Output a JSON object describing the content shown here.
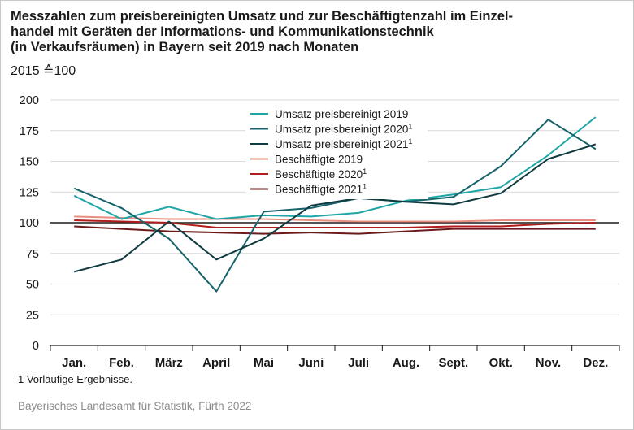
{
  "title_lines": [
    "Messzahlen zum preisbereinigten Umsatz und zur Beschäftigtenzahl im Einzel-",
    "handel mit Geräten der Informations- und Kommunikationstechnik",
    "(in Verkaufsräumen) in Bayern seit 2019 nach Monaten"
  ],
  "subtitle": "2015 ≙100",
  "footnote": "1  Vorläufige Ergebnisse.",
  "source": "Bayerisches Landesamt für Statistik, Fürth 2022",
  "chart_data": {
    "type": "line",
    "title": "Messzahlen zum preisbereinigten Umsatz und zur Beschäftigtenzahl im Einzelhandel mit Geräten der Informations- und Kommunikationstechnik (in Verkaufsräumen) in Bayern seit 2019 nach Monaten",
    "xlabel": "",
    "ylabel": "",
    "categories": [
      "Jan.",
      "Feb.",
      "März",
      "April",
      "Mai",
      "Juni",
      "Juli",
      "Aug.",
      "Sept.",
      "Okt.",
      "Nov.",
      "Dez."
    ],
    "ylim": [
      0,
      200
    ],
    "yticks": [
      0,
      25,
      50,
      75,
      100,
      125,
      150,
      175,
      200
    ],
    "grid": "horizontal",
    "legend_position": "top-center",
    "series": [
      {
        "name": "Umsatz preisbereinigt 2019",
        "sup": "",
        "color": "#1fa5a5",
        "width": 2,
        "values": [
          122,
          103,
          113,
          103,
          106,
          105,
          108,
          118,
          123,
          129,
          155,
          186
        ]
      },
      {
        "name": "Umsatz preisbereinigt 2020",
        "sup": "1",
        "color": "#16636b",
        "width": 2,
        "values": [
          128,
          112,
          87,
          44,
          109,
          112,
          120,
          117,
          121,
          146,
          184,
          160
        ]
      },
      {
        "name": "Umsatz preisbereinigt 2021",
        "sup": "1",
        "color": "#0f3a40",
        "width": 2,
        "values": [
          60,
          70,
          101,
          70,
          87,
          114,
          120,
          117,
          115,
          124,
          152,
          164
        ]
      },
      {
        "name": "Beschäftigte 2019",
        "sup": "",
        "color": "#e88d80",
        "width": 2,
        "values": [
          105,
          104,
          103,
          103,
          103,
          102,
          101,
          101,
          101,
          102,
          102,
          102
        ]
      },
      {
        "name": "Beschäftigte 2020",
        "sup": "1",
        "color": "#b11c1c",
        "width": 2,
        "values": [
          102,
          101,
          100,
          96,
          96,
          96,
          96,
          96,
          97,
          97,
          99,
          100
        ]
      },
      {
        "name": "Beschäftigte 2021",
        "sup": "1",
        "color": "#6a1a1a",
        "width": 2,
        "values": [
          97,
          95,
          93,
          92,
          91,
          92,
          91,
          93,
          95,
          95,
          95,
          95
        ]
      }
    ]
  }
}
